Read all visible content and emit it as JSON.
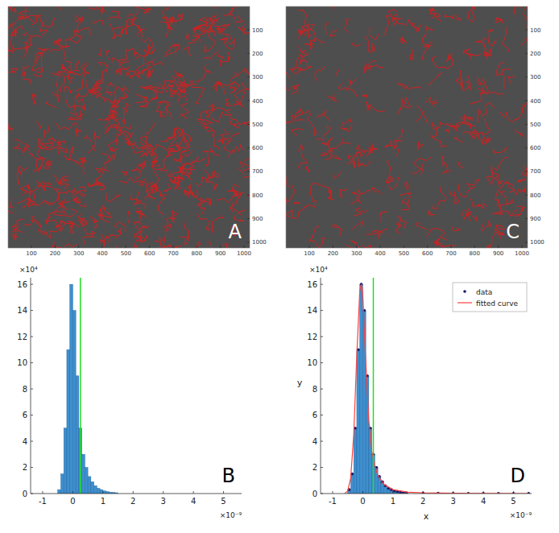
{
  "chart_data": [
    {
      "type": "image",
      "label": "A",
      "xlim": [
        1,
        1024
      ],
      "ylim": [
        1,
        1024
      ],
      "xticks": [
        100,
        200,
        300,
        400,
        500,
        600,
        700,
        800,
        900,
        1000
      ],
      "yticks": [
        100,
        200,
        300,
        400,
        500,
        600,
        700,
        800,
        900,
        1000
      ],
      "color": "#d42020"
    },
    {
      "type": "histogram",
      "label": "B",
      "color": "#3d8fd0",
      "bins": [
        -0.5,
        -0.4,
        -0.3,
        -0.2,
        -0.1,
        0,
        0.1,
        0.2,
        0.3,
        0.4,
        0.5,
        0.6,
        0.7,
        0.8,
        0.9,
        1.0,
        1.1,
        1.2,
        1.3,
        1.4,
        1.5
      ],
      "values": [
        0.3,
        1.5,
        5,
        11,
        16,
        14,
        9,
        5,
        3,
        2,
        1.3,
        0.9,
        0.6,
        0.4,
        0.3,
        0.2,
        0.15,
        0.1,
        0.08,
        0.06
      ],
      "threshold": {
        "value": 0.25,
        "color": "#22dd22"
      },
      "xlim": [
        -1.4,
        5.6
      ],
      "ylim": [
        0,
        16.5
      ],
      "xticks": [
        -1,
        0,
        1,
        2,
        3,
        4,
        5
      ],
      "yticks": [
        0,
        2,
        4,
        6,
        8,
        10,
        12,
        14,
        16
      ],
      "x_multiplier": "×10⁻⁹",
      "y_multiplier": "×10⁴",
      "grid": false
    },
    {
      "type": "image",
      "label": "C",
      "xlim": [
        1,
        1024
      ],
      "ylim": [
        1,
        1024
      ],
      "xticks": [
        100,
        200,
        300,
        400,
        500,
        600,
        700,
        800,
        900,
        1000
      ],
      "yticks": [
        100,
        200,
        300,
        400,
        500,
        600,
        700,
        800,
        900,
        1000
      ],
      "color": "#d42020"
    },
    {
      "type": "histogram",
      "label": "D",
      "color": "#3d8fd0",
      "bins": [
        -0.5,
        -0.4,
        -0.3,
        -0.2,
        -0.1,
        0,
        0.1,
        0.2,
        0.3,
        0.4,
        0.5,
        0.6,
        0.7,
        0.8,
        0.9,
        1.0,
        1.1,
        1.2,
        1.3,
        1.4,
        1.5
      ],
      "values": [
        0.3,
        1.5,
        5,
        11,
        16,
        14,
        9,
        5,
        3,
        2,
        1.3,
        0.9,
        0.6,
        0.4,
        0.3,
        0.2,
        0.15,
        0.1,
        0.08,
        0.06
      ],
      "series": [
        {
          "name": "data",
          "type": "scatter",
          "marker": "dot",
          "color": "#1a1a66",
          "x": [
            -0.45,
            -0.35,
            -0.25,
            -0.15,
            -0.05,
            0.05,
            0.15,
            0.25,
            0.35,
            0.45,
            0.55,
            0.65,
            0.75,
            0.85,
            0.95,
            1.05,
            1.15,
            1.25,
            1.35,
            1.45,
            2.0,
            2.5,
            3.0,
            3.5,
            4.0,
            4.5,
            5.0,
            5.5
          ],
          "values": [
            0.3,
            1.5,
            5,
            11,
            16,
            14,
            9,
            5,
            3,
            2,
            1.3,
            0.9,
            0.6,
            0.4,
            0.3,
            0.2,
            0.15,
            0.1,
            0.08,
            0.06,
            0.04,
            0.03,
            0.02,
            0.02,
            0.01,
            0.01,
            0.01,
            0.01
          ]
        },
        {
          "name": "fitted curve",
          "type": "line",
          "line_style": "solid",
          "color": "#ff4040",
          "x": [
            -0.6,
            -0.5,
            -0.4,
            -0.3,
            -0.2,
            -0.1,
            -0.05,
            0,
            0.1,
            0.2,
            0.3,
            0.4,
            0.5,
            0.7,
            1.0,
            1.5,
            2,
            3,
            4,
            5.5
          ],
          "values": [
            0,
            0.2,
            1.2,
            4.5,
            10.5,
            15.5,
            16,
            15.2,
            10,
            5.6,
            3.2,
            2.1,
            1.4,
            0.7,
            0.3,
            0.1,
            0.05,
            0.02,
            0.01,
            0
          ]
        }
      ],
      "threshold": {
        "value": 0.35,
        "color": "#22dd22"
      },
      "xlim": [
        -1.4,
        5.6
      ],
      "ylim": [
        0,
        16.5
      ],
      "xticks": [
        -1,
        0,
        1,
        2,
        3,
        4,
        5
      ],
      "yticks": [
        0,
        2,
        4,
        6,
        8,
        10,
        12,
        14,
        16
      ],
      "x_multiplier": "×10⁻⁹",
      "y_multiplier": "×10⁴",
      "x_label": "x",
      "y_label": "y",
      "legend": "top-right",
      "grid": false
    }
  ]
}
